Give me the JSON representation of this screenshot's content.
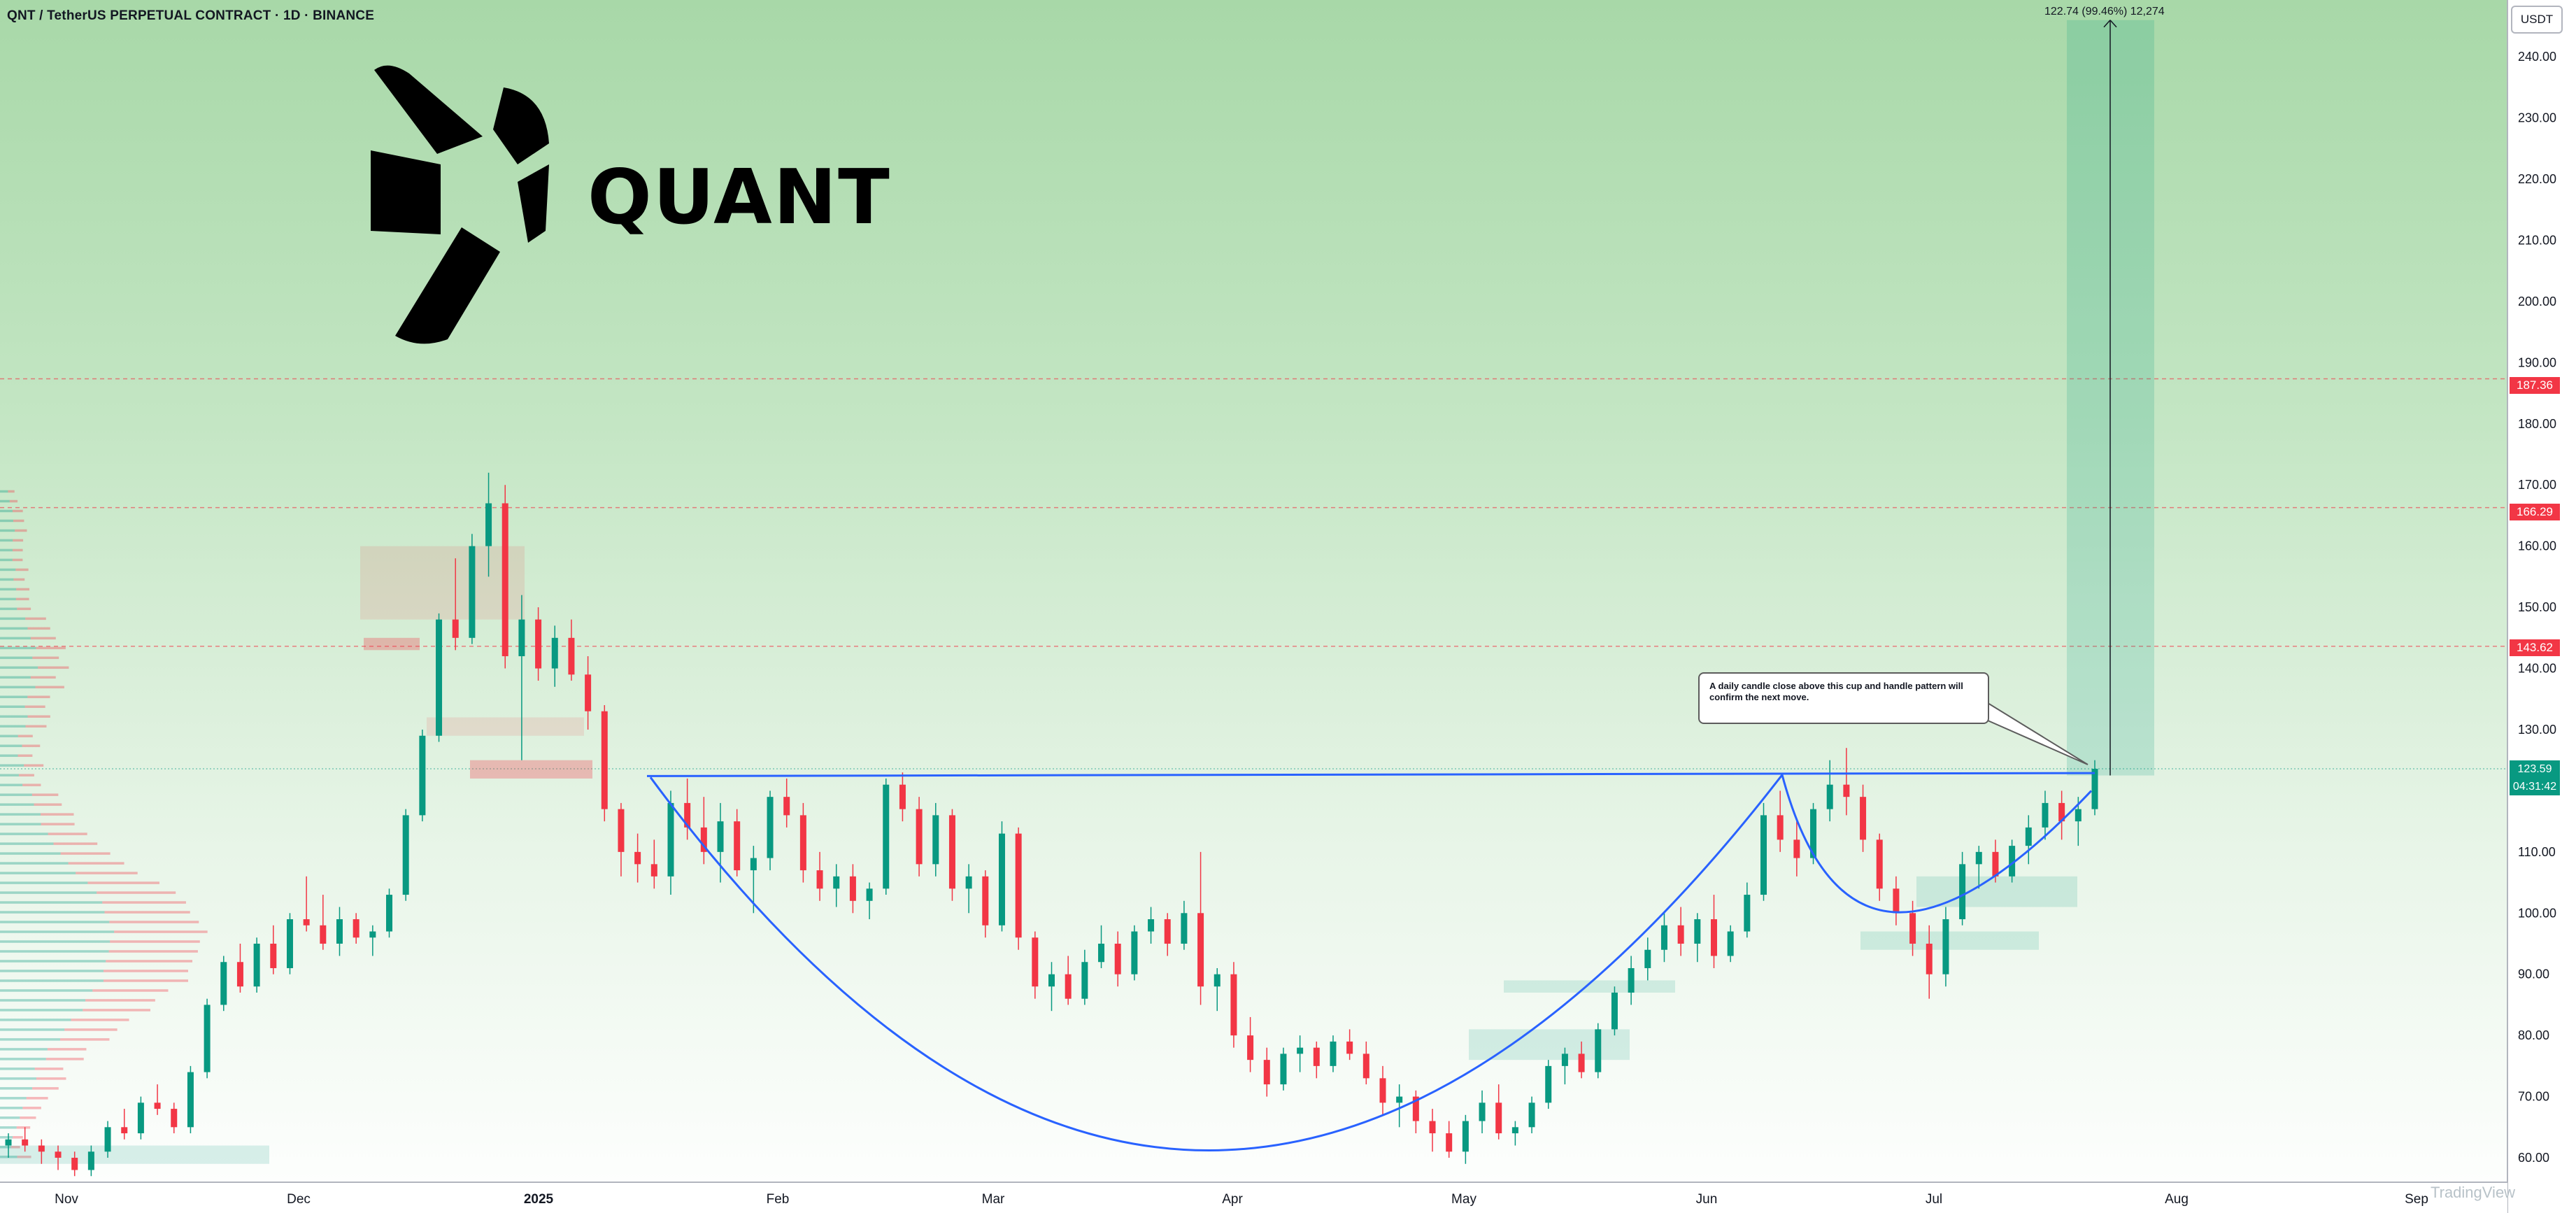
{
  "header": {
    "title": "QNT / TetherUS PERPETUAL CONTRACT · 1D · BINANCE"
  },
  "currency": "USDT",
  "logo": {
    "text": "QUANT",
    "icon": "quant-logo-icon"
  },
  "measure": {
    "label": "122.74 (99.46%) 12,274"
  },
  "annotation": {
    "text": "A daily candle close above this cup and handle pattern will confirm the next move."
  },
  "price_labels": [
    {
      "value": "187.36",
      "color": "#f23645"
    },
    {
      "value": "166.29",
      "color": "#f23645"
    },
    {
      "value": "143.62",
      "color": "#f23645"
    }
  ],
  "current_price": {
    "value": "123.59",
    "countdown": "04:31:42",
    "color": "#089981"
  },
  "watermark": "TradingView",
  "colors": {
    "up": "#089981",
    "down": "#f23645",
    "pattern_line": "#2962ff",
    "level_line": "#f23645"
  },
  "chart_data": {
    "type": "candlestick",
    "title": "QNT / TetherUS PERPETUAL CONTRACT · 1D · BINANCE",
    "ylabel": "USDT",
    "ylim": [
      56,
      247
    ],
    "y_ticks": [
      "60.00",
      "70.00",
      "80.00",
      "90.00",
      "100.00",
      "110.00",
      "120.00",
      "130.00",
      "140.00",
      "150.00",
      "160.00",
      "170.00",
      "180.00",
      "190.00",
      "200.00",
      "210.00",
      "220.00",
      "230.00",
      "240.00"
    ],
    "x_ticks": [
      "Nov",
      "Dec",
      "2025",
      "Feb",
      "Mar",
      "Apr",
      "May",
      "Jun",
      "Jul",
      "Aug",
      "Sep"
    ],
    "grid": false,
    "horizontal_levels": [
      187.36,
      166.29,
      143.62,
      123.59
    ],
    "neckline": 122.0,
    "series": [
      {
        "values": [
          [
            62,
            64,
            60,
            63
          ],
          [
            63,
            65,
            61,
            62
          ],
          [
            62,
            63,
            59,
            61
          ],
          [
            61,
            62,
            58,
            60
          ],
          [
            60,
            61,
            57,
            58
          ],
          [
            58,
            62,
            57,
            61
          ],
          [
            61,
            66,
            60,
            65
          ],
          [
            65,
            68,
            63,
            64
          ],
          [
            64,
            70,
            63,
            69
          ],
          [
            69,
            72,
            67,
            68
          ],
          [
            68,
            69,
            64,
            65
          ],
          [
            65,
            75,
            64,
            74
          ],
          [
            74,
            86,
            73,
            85
          ],
          [
            85,
            93,
            84,
            92
          ],
          [
            92,
            95,
            87,
            88
          ],
          [
            88,
            96,
            87,
            95
          ],
          [
            95,
            98,
            90,
            91
          ],
          [
            91,
            100,
            90,
            99
          ],
          [
            99,
            106,
            97,
            98
          ],
          [
            98,
            103,
            94,
            95
          ],
          [
            95,
            101,
            93,
            99
          ],
          [
            99,
            100,
            95,
            96
          ],
          [
            96,
            98,
            93,
            97
          ],
          [
            97,
            104,
            96,
            103
          ],
          [
            103,
            117,
            102,
            116
          ],
          [
            116,
            130,
            115,
            129
          ],
          [
            129,
            149,
            128,
            148
          ],
          [
            148,
            158,
            143,
            145
          ],
          [
            145,
            162,
            144,
            160
          ],
          [
            160,
            172,
            155,
            167
          ],
          [
            167,
            170,
            140,
            142
          ],
          [
            142,
            152,
            125,
            148
          ],
          [
            148,
            150,
            138,
            140
          ],
          [
            140,
            147,
            137,
            145
          ],
          [
            145,
            148,
            138,
            139
          ],
          [
            139,
            142,
            130,
            133
          ],
          [
            133,
            134,
            115,
            117
          ],
          [
            117,
            118,
            106,
            110
          ],
          [
            110,
            113,
            105,
            108
          ],
          [
            108,
            112,
            104,
            106
          ],
          [
            106,
            120,
            103,
            118
          ],
          [
            118,
            122,
            112,
            114
          ],
          [
            114,
            119,
            108,
            110
          ],
          [
            110,
            118,
            105,
            115
          ],
          [
            115,
            117,
            106,
            107
          ],
          [
            107,
            111,
            100,
            109
          ],
          [
            109,
            120,
            107,
            119
          ],
          [
            119,
            122,
            114,
            116
          ],
          [
            116,
            118,
            105,
            107
          ],
          [
            107,
            110,
            102,
            104
          ],
          [
            104,
            108,
            101,
            106
          ],
          [
            106,
            108,
            100,
            102
          ],
          [
            102,
            105,
            99,
            104
          ],
          [
            104,
            122,
            103,
            121
          ],
          [
            121,
            123,
            115,
            117
          ],
          [
            117,
            119,
            106,
            108
          ],
          [
            108,
            118,
            106,
            116
          ],
          [
            116,
            117,
            102,
            104
          ],
          [
            104,
            108,
            100,
            106
          ],
          [
            106,
            107,
            96,
            98
          ],
          [
            98,
            115,
            97,
            113
          ],
          [
            113,
            114,
            94,
            96
          ],
          [
            96,
            97,
            86,
            88
          ],
          [
            88,
            92,
            84,
            90
          ],
          [
            90,
            93,
            85,
            86
          ],
          [
            86,
            94,
            85,
            92
          ],
          [
            92,
            98,
            91,
            95
          ],
          [
            95,
            97,
            88,
            90
          ],
          [
            90,
            98,
            89,
            97
          ],
          [
            97,
            101,
            95,
            99
          ],
          [
            99,
            100,
            93,
            95
          ],
          [
            95,
            102,
            94,
            100
          ],
          [
            100,
            110,
            85,
            88
          ],
          [
            88,
            91,
            84,
            90
          ],
          [
            90,
            92,
            78,
            80
          ],
          [
            80,
            83,
            74,
            76
          ],
          [
            76,
            78,
            70,
            72
          ],
          [
            72,
            78,
            71,
            77
          ],
          [
            77,
            80,
            74,
            78
          ],
          [
            78,
            79,
            73,
            75
          ],
          [
            75,
            80,
            74,
            79
          ],
          [
            79,
            81,
            76,
            77
          ],
          [
            77,
            79,
            72,
            73
          ],
          [
            73,
            75,
            67,
            69
          ],
          [
            69,
            72,
            65,
            70
          ],
          [
            70,
            71,
            64,
            66
          ],
          [
            66,
            68,
            61,
            64
          ],
          [
            64,
            66,
            60,
            61
          ],
          [
            61,
            67,
            59,
            66
          ],
          [
            66,
            71,
            64,
            69
          ],
          [
            69,
            72,
            63,
            64
          ],
          [
            64,
            66,
            62,
            65
          ],
          [
            65,
            70,
            64,
            69
          ],
          [
            69,
            76,
            68,
            75
          ],
          [
            75,
            78,
            72,
            77
          ],
          [
            77,
            79,
            73,
            74
          ],
          [
            74,
            82,
            73,
            81
          ],
          [
            81,
            88,
            80,
            87
          ],
          [
            87,
            93,
            85,
            91
          ],
          [
            91,
            96,
            89,
            94
          ],
          [
            94,
            100,
            92,
            98
          ],
          [
            98,
            101,
            93,
            95
          ],
          [
            95,
            100,
            92,
            99
          ],
          [
            99,
            103,
            91,
            93
          ],
          [
            93,
            98,
            92,
            97
          ],
          [
            97,
            105,
            96,
            103
          ],
          [
            103,
            118,
            102,
            116
          ],
          [
            116,
            120,
            110,
            112
          ],
          [
            112,
            115,
            106,
            109
          ],
          [
            109,
            118,
            108,
            117
          ],
          [
            117,
            125,
            115,
            121
          ],
          [
            121,
            127,
            116,
            119
          ],
          [
            119,
            121,
            110,
            112
          ],
          [
            112,
            113,
            102,
            104
          ],
          [
            104,
            106,
            98,
            100
          ],
          [
            100,
            102,
            93,
            95
          ],
          [
            95,
            98,
            86,
            90
          ],
          [
            90,
            101,
            88,
            99
          ],
          [
            99,
            110,
            98,
            108
          ],
          [
            108,
            111,
            104,
            110
          ],
          [
            110,
            112,
            105,
            106
          ],
          [
            106,
            112,
            105,
            111
          ],
          [
            111,
            116,
            108,
            114
          ],
          [
            114,
            120,
            112,
            118
          ],
          [
            118,
            120,
            112,
            115
          ],
          [
            115,
            119,
            111,
            117
          ],
          [
            117,
            125,
            116,
            123.59
          ]
        ]
      }
    ]
  }
}
